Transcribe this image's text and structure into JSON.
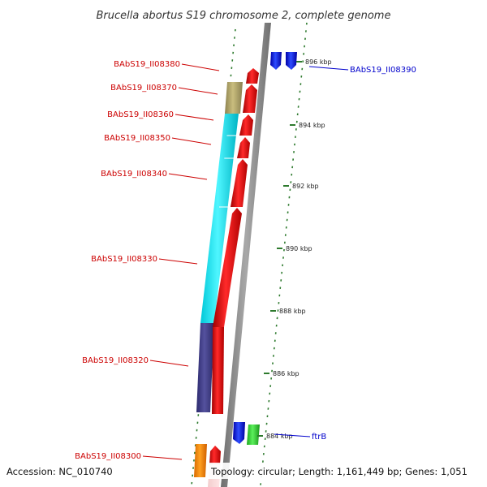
{
  "title": "Brucella abortus S19 chromosome 2, complete genome",
  "colors": {
    "background": "#ffffff",
    "backbone": "#8c8c8c",
    "gene_label_red": "#cc0000",
    "gene_label_blue": "#0000cc",
    "scale_dash": "#2d7a2d"
  },
  "ticks": [
    {
      "label": "896 kbp"
    },
    {
      "label": "894 kbp"
    },
    {
      "label": "892 kbp"
    },
    {
      "label": "890 kbp"
    },
    {
      "label": "888 kbp"
    },
    {
      "label": "886 kbp"
    },
    {
      "label": "884 kbp"
    }
  ],
  "gene_labels": [
    {
      "text": "BAbS19_II08380",
      "side": "left",
      "color": "#cc0000"
    },
    {
      "text": "BAbS19_II08370",
      "side": "left",
      "color": "#cc0000"
    },
    {
      "text": "BAbS19_II08360",
      "side": "left",
      "color": "#cc0000"
    },
    {
      "text": "BAbS19_II08350",
      "side": "left",
      "color": "#cc0000"
    },
    {
      "text": "BAbS19_II08340",
      "side": "left",
      "color": "#cc0000"
    },
    {
      "text": "BAbS19_II08330",
      "side": "left",
      "color": "#cc0000"
    },
    {
      "text": "BAbS19_II08320",
      "side": "left",
      "color": "#cc0000"
    },
    {
      "text": "BAbS19_II08300",
      "side": "left",
      "color": "#cc0000"
    },
    {
      "text": "BAbS19_II08390",
      "side": "right",
      "color": "#0000cc"
    },
    {
      "text": "ftrB",
      "side": "right",
      "color": "#0000cc"
    }
  ],
  "footer": {
    "accession": "Accession: NC_010740",
    "summary": "Topology: circular; Length: 1,161,449 bp; Genes: 1,051"
  }
}
